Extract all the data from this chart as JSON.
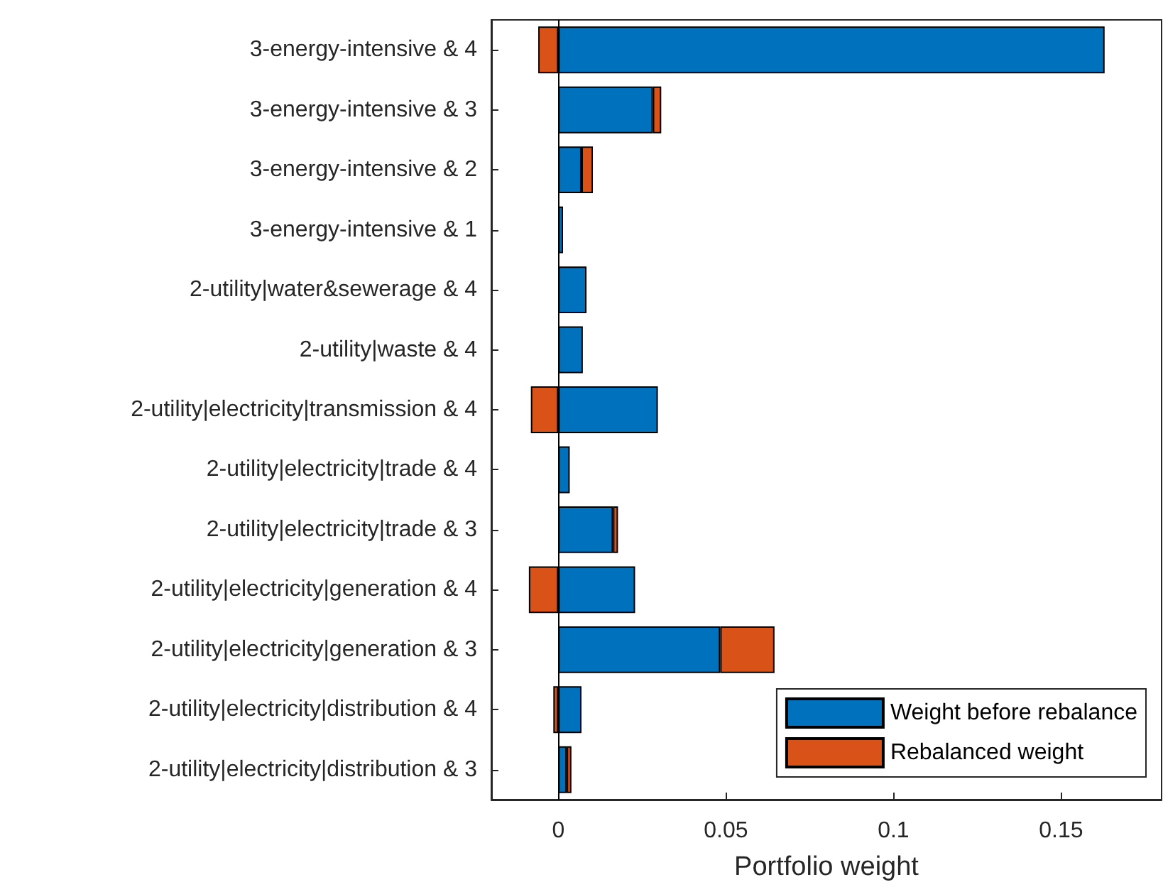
{
  "chart_data": {
    "type": "bar",
    "orientation": "horizontal",
    "stacked": true,
    "xlabel": "Portfolio weight",
    "categories": [
      "3-energy-intensive & 4",
      "3-energy-intensive & 3",
      "3-energy-intensive & 2",
      "3-energy-intensive & 1",
      "2-utility|water&sewerage & 4",
      "2-utility|waste & 4",
      "2-utility|electricity|transmission & 4",
      "2-utility|electricity|trade & 4",
      "2-utility|electricity|trade & 3",
      "2-utility|electricity|generation & 4",
      "2-utility|electricity|generation & 3",
      "2-utility|electricity|distribution & 4",
      "2-utility|electricity|distribution & 3"
    ],
    "series": [
      {
        "name": "Weight before rebalance",
        "color": "#0072bd",
        "values": [
          0.163,
          0.0282,
          0.0069,
          0.0014,
          0.0084,
          0.0073,
          0.0297,
          0.0034,
          0.0163,
          0.0229,
          0.0483,
          0.0069,
          0.0025
        ]
      },
      {
        "name": "Rebalanced weight",
        "color": "#d95319",
        "values": [
          -0.006,
          0.0025,
          0.0034,
          null,
          null,
          null,
          -0.0082,
          null,
          0.0015,
          -0.0088,
          0.0162,
          -0.0015,
          0.0014
        ]
      }
    ],
    "xlim": [
      -0.02,
      0.18
    ],
    "xticks": [
      0,
      0.05,
      0.1,
      0.15
    ],
    "ref_lines": [
      {
        "axis": "x",
        "value": 0,
        "color": "#000000"
      }
    ],
    "grid": false,
    "legend": "bottom right"
  }
}
